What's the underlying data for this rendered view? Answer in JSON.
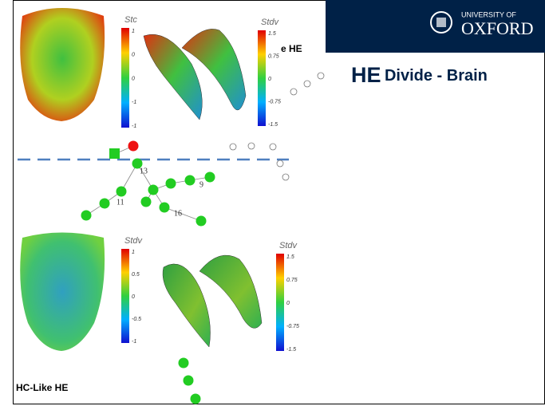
{
  "header": {
    "university": "UNIVERSITY OF",
    "name": "OXFORD"
  },
  "title": {
    "strong": "HE",
    "rest": "Divide - Brain"
  },
  "panels": [
    {
      "label": "e HE",
      "colorbars": [
        {
          "title": "Stc",
          "ticks": [
            "1",
            "0",
            "0",
            "-1",
            "-1"
          ]
        },
        {
          "title": "Stdv",
          "ticks": [
            "1.5",
            "0.75",
            "0",
            "-0.75",
            "-1.5"
          ]
        }
      ]
    },
    {
      "label": "HC-Like HE",
      "colorbars": [
        {
          "title": "Stdv",
          "ticks": [
            "1",
            "0.5",
            "0",
            "-0.5",
            "-1"
          ]
        },
        {
          "title": "Stdv",
          "ticks": [
            "1.5",
            "0.75",
            "0",
            "-0.75",
            "-1.5"
          ]
        }
      ]
    }
  ],
  "tree_labels": [
    "13",
    "9",
    "11",
    "16"
  ]
}
